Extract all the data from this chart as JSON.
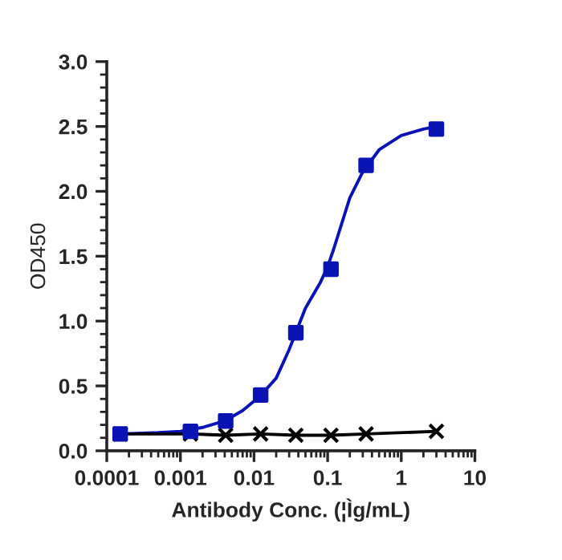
{
  "chart_data": {
    "type": "scatter",
    "xlabel": "Antibody Conc. (¦Ìg/mL)",
    "ylabel": "OD450",
    "log": "x",
    "xlim": [
      0.0001,
      10
    ],
    "xticks": [
      0.0001,
      0.001,
      0.01,
      0.1,
      1,
      10
    ],
    "ylim": [
      0,
      3
    ],
    "yticks": [
      {
        "value": 0,
        "label": "0.0"
      },
      0.5,
      {
        "value": 1,
        "label": "1.0"
      },
      1.5,
      {
        "value": 2,
        "label": "2.0"
      },
      2.5,
      {
        "value": 3,
        "label": "3.0"
      }
    ],
    "grid": false,
    "legend": false,
    "series": [
      {
        "marker": "square",
        "color": "#0a14b4",
        "x": [
          0.000152,
          0.00137,
          0.00412,
          0.0123,
          0.037,
          0.111,
          0.333,
          3
        ],
        "values": [
          0.13,
          0.15,
          0.23,
          0.43,
          0.91,
          1.4,
          2.2,
          2.48
        ]
      },
      {
        "type": "line",
        "marker": "none",
        "color": "#0a14b4",
        "x": [
          0.00015,
          0.0005,
          0.001,
          0.002,
          0.004,
          0.007,
          0.012,
          0.02,
          0.03,
          0.05,
          0.08,
          0.1,
          0.12,
          0.2,
          0.3,
          0.5,
          1,
          2,
          3
        ],
        "values": [
          0.13,
          0.14,
          0.15,
          0.18,
          0.23,
          0.31,
          0.42,
          0.56,
          0.78,
          1.1,
          1.3,
          1.42,
          1.55,
          1.95,
          2.15,
          2.32,
          2.43,
          2.48,
          2.5
        ]
      },
      {
        "type": "line",
        "marker": "cross",
        "color": "#000000",
        "x": [
          0.000152,
          0.00137,
          0.00412,
          0.0123,
          0.037,
          0.111,
          0.333,
          3
        ],
        "values": [
          0.13,
          0.13,
          0.12,
          0.13,
          0.12,
          0.12,
          0.13,
          0.15
        ]
      }
    ]
  }
}
